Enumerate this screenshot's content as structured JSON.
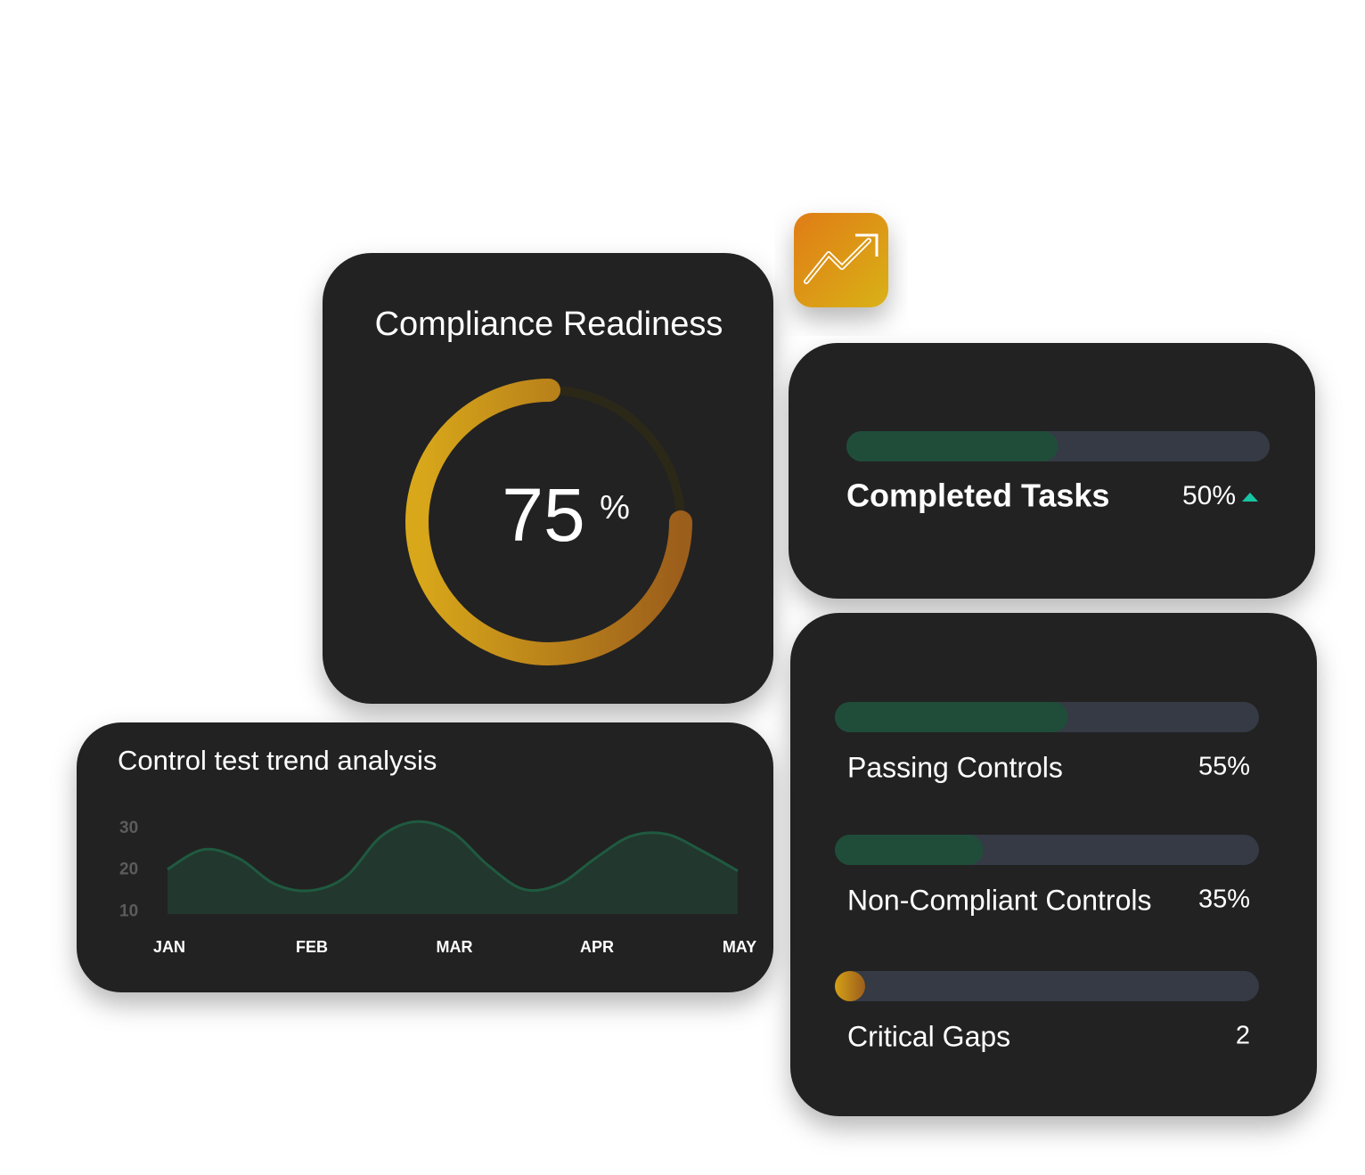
{
  "readiness": {
    "title": "Compliance Readiness",
    "value": 75,
    "unit": "%",
    "color_start": "#d9a81a",
    "color_end": "#9c5e1b",
    "track_color": "#2c2818"
  },
  "completed_tasks": {
    "label": "Completed Tasks",
    "value": 50,
    "value_label": "50%",
    "color": "#1f4d3a"
  },
  "controls": [
    {
      "label": "Passing Controls",
      "value": 55,
      "value_label": "55%",
      "color": "#1f4d3a"
    },
    {
      "label": "Non-Compliant Controls",
      "value": 35,
      "value_label": "35%",
      "color": "#1f4d3a"
    },
    {
      "label": "Critical Gaps",
      "value": 2,
      "color": "#d4a017"
    }
  ],
  "trend": {
    "type": "area",
    "title": "Control test trend analysis",
    "categories": [
      "JAN",
      null,
      null,
      null,
      "FEB",
      null,
      null,
      null,
      "MAR",
      null,
      null,
      null,
      "APR",
      null,
      null,
      null,
      "MAY"
    ],
    "values": [
      20.2,
      24.9,
      22.8,
      16.7,
      15.1,
      18.4,
      28.1,
      31.6,
      29,
      21.1,
      15.4,
      16.7,
      22.8,
      28.1,
      28.6,
      24.6,
      19.8
    ],
    "ylim": [
      9.5,
      32
    ],
    "yticks": [
      10,
      20,
      30
    ],
    "color": "#1f5a40",
    "fill": "#22372d"
  }
}
